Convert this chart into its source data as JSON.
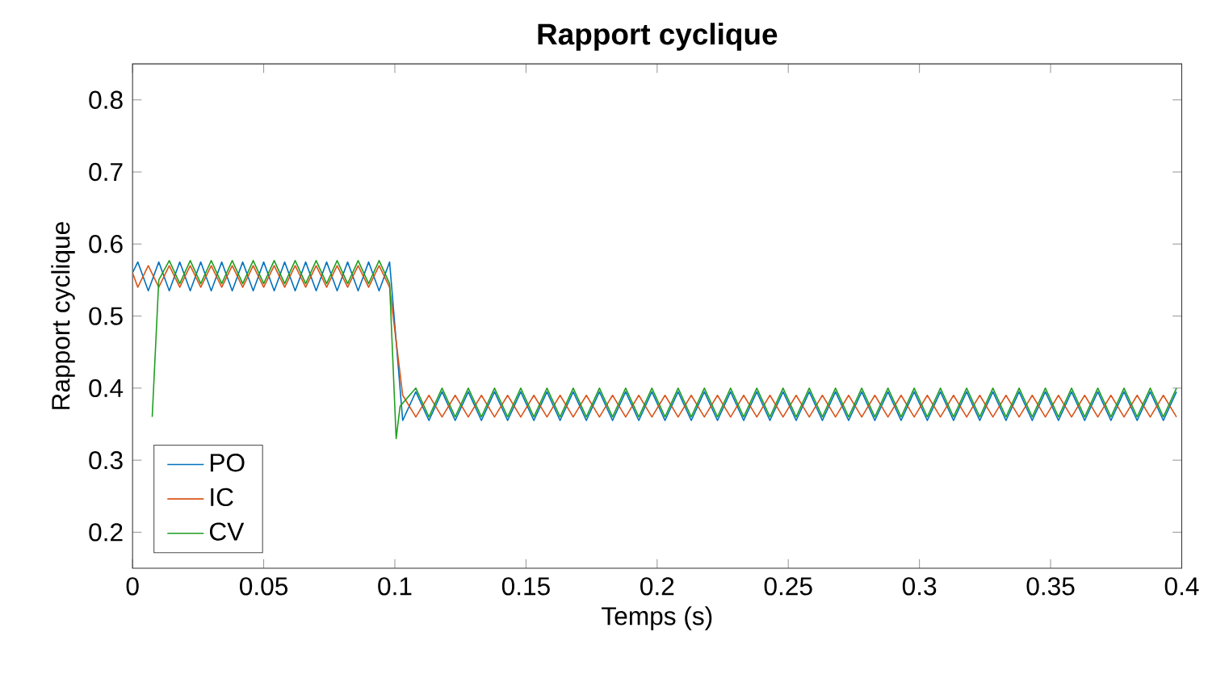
{
  "chart_data": {
    "type": "line",
    "title": "Rapport cyclique",
    "xlabel": "Temps (s)",
    "ylabel": "Rapport cyclique",
    "xlim": [
      0,
      0.4
    ],
    "ylim": [
      0.15,
      0.85
    ],
    "xticks": [
      0,
      0.05,
      0.1,
      0.15,
      0.2,
      0.25,
      0.3,
      0.35,
      0.4
    ],
    "yticks": [
      0.2,
      0.3,
      0.4,
      0.5,
      0.6,
      0.7,
      0.8
    ],
    "grid": false,
    "legend": "bottom left",
    "marker": "none",
    "line_style": "solid",
    "x": [
      0,
      0.002,
      0.006,
      0.01,
      0.014,
      0.018,
      0.022,
      0.026,
      0.03,
      0.034,
      0.038,
      0.042,
      0.046,
      0.05,
      0.054,
      0.058,
      0.062,
      0.066,
      0.07,
      0.074,
      0.078,
      0.082,
      0.086,
      0.09,
      0.094,
      0.098,
      0.103,
      0.108,
      0.113,
      0.118,
      0.123,
      0.128,
      0.133,
      0.138,
      0.143,
      0.148,
      0.153,
      0.158,
      0.163,
      0.168,
      0.173,
      0.178,
      0.183,
      0.188,
      0.193,
      0.198,
      0.203,
      0.208,
      0.213,
      0.218,
      0.223,
      0.228,
      0.233,
      0.238,
      0.243,
      0.248,
      0.253,
      0.258,
      0.263,
      0.268,
      0.273,
      0.278,
      0.283,
      0.288,
      0.293,
      0.298,
      0.303,
      0.308,
      0.313,
      0.318,
      0.323,
      0.328,
      0.333,
      0.338,
      0.343,
      0.348,
      0.353,
      0.358,
      0.363,
      0.368,
      0.373,
      0.378,
      0.383,
      0.388,
      0.393,
      0.398
    ],
    "series": [
      {
        "name": "PO",
        "color": "#0072bd",
        "values": [
          0.56,
          0.575,
          0.535,
          0.575,
          0.535,
          0.575,
          0.535,
          0.575,
          0.535,
          0.575,
          0.535,
          0.575,
          0.535,
          0.575,
          0.535,
          0.575,
          0.535,
          0.575,
          0.535,
          0.575,
          0.535,
          0.575,
          0.535,
          0.575,
          0.535,
          0.575,
          0.355,
          0.395,
          0.355,
          0.395,
          0.355,
          0.395,
          0.355,
          0.395,
          0.355,
          0.395,
          0.355,
          0.395,
          0.355,
          0.395,
          0.355,
          0.395,
          0.355,
          0.395,
          0.355,
          0.395,
          0.355,
          0.395,
          0.355,
          0.395,
          0.355,
          0.395,
          0.355,
          0.395,
          0.355,
          0.395,
          0.355,
          0.395,
          0.355,
          0.395,
          0.355,
          0.395,
          0.355,
          0.395,
          0.355,
          0.395,
          0.355,
          0.395,
          0.355,
          0.395,
          0.355,
          0.395,
          0.355,
          0.395,
          0.355,
          0.395,
          0.355,
          0.395,
          0.355,
          0.395,
          0.355,
          0.395,
          0.355,
          0.395,
          0.355,
          0.395
        ]
      },
      {
        "name": "IC",
        "color": "#d95319",
        "values": [
          0.56,
          0.54,
          0.57,
          0.54,
          0.57,
          0.54,
          0.57,
          0.54,
          0.57,
          0.54,
          0.57,
          0.54,
          0.57,
          0.54,
          0.57,
          0.54,
          0.57,
          0.54,
          0.57,
          0.54,
          0.57,
          0.54,
          0.57,
          0.54,
          0.57,
          0.54,
          0.39,
          0.36,
          0.39,
          0.36,
          0.39,
          0.36,
          0.39,
          0.36,
          0.39,
          0.36,
          0.39,
          0.36,
          0.39,
          0.36,
          0.39,
          0.36,
          0.39,
          0.36,
          0.39,
          0.36,
          0.39,
          0.36,
          0.39,
          0.36,
          0.39,
          0.36,
          0.39,
          0.36,
          0.39,
          0.36,
          0.39,
          0.36,
          0.39,
          0.36,
          0.39,
          0.36,
          0.39,
          0.36,
          0.39,
          0.36,
          0.39,
          0.36,
          0.39,
          0.36,
          0.39,
          0.36,
          0.39,
          0.36,
          0.39,
          0.36,
          0.39,
          0.36,
          0.39,
          0.36,
          0.39,
          0.36,
          0.39,
          0.36,
          0.39,
          0.36
        ]
      },
      {
        "name": "CV",
        "color": "#1f9e1f",
        "x": [
          0.0075,
          0.01,
          0.014,
          0.018,
          0.022,
          0.026,
          0.03,
          0.034,
          0.038,
          0.042,
          0.046,
          0.05,
          0.054,
          0.058,
          0.062,
          0.066,
          0.07,
          0.074,
          0.078,
          0.082,
          0.086,
          0.09,
          0.094,
          0.098,
          0.1005,
          0.102,
          0.108,
          0.113,
          0.118,
          0.123,
          0.128,
          0.133,
          0.138,
          0.143,
          0.148,
          0.153,
          0.158,
          0.163,
          0.168,
          0.173,
          0.178,
          0.183,
          0.188,
          0.193,
          0.198,
          0.203,
          0.208,
          0.213,
          0.218,
          0.223,
          0.228,
          0.233,
          0.238,
          0.243,
          0.248,
          0.253,
          0.258,
          0.263,
          0.268,
          0.273,
          0.278,
          0.283,
          0.288,
          0.293,
          0.298,
          0.303,
          0.308,
          0.313,
          0.318,
          0.323,
          0.328,
          0.333,
          0.338,
          0.343,
          0.348,
          0.353,
          0.358,
          0.363,
          0.368,
          0.373,
          0.378,
          0.383,
          0.388,
          0.393,
          0.398
        ],
        "values": [
          0.36,
          0.55,
          0.577,
          0.545,
          0.577,
          0.545,
          0.577,
          0.545,
          0.577,
          0.545,
          0.577,
          0.545,
          0.577,
          0.545,
          0.577,
          0.545,
          0.577,
          0.545,
          0.577,
          0.545,
          0.577,
          0.545,
          0.577,
          0.545,
          0.33,
          0.375,
          0.4,
          0.36,
          0.4,
          0.36,
          0.4,
          0.36,
          0.4,
          0.36,
          0.4,
          0.36,
          0.4,
          0.36,
          0.4,
          0.36,
          0.4,
          0.36,
          0.4,
          0.36,
          0.4,
          0.36,
          0.4,
          0.36,
          0.4,
          0.36,
          0.4,
          0.36,
          0.4,
          0.36,
          0.4,
          0.36,
          0.4,
          0.36,
          0.4,
          0.36,
          0.4,
          0.36,
          0.4,
          0.36,
          0.4,
          0.36,
          0.4,
          0.36,
          0.4,
          0.36,
          0.4,
          0.36,
          0.4,
          0.36,
          0.4,
          0.36,
          0.4,
          0.36,
          0.4,
          0.36,
          0.4,
          0.36,
          0.4,
          0.36,
          0.4
        ]
      }
    ]
  }
}
